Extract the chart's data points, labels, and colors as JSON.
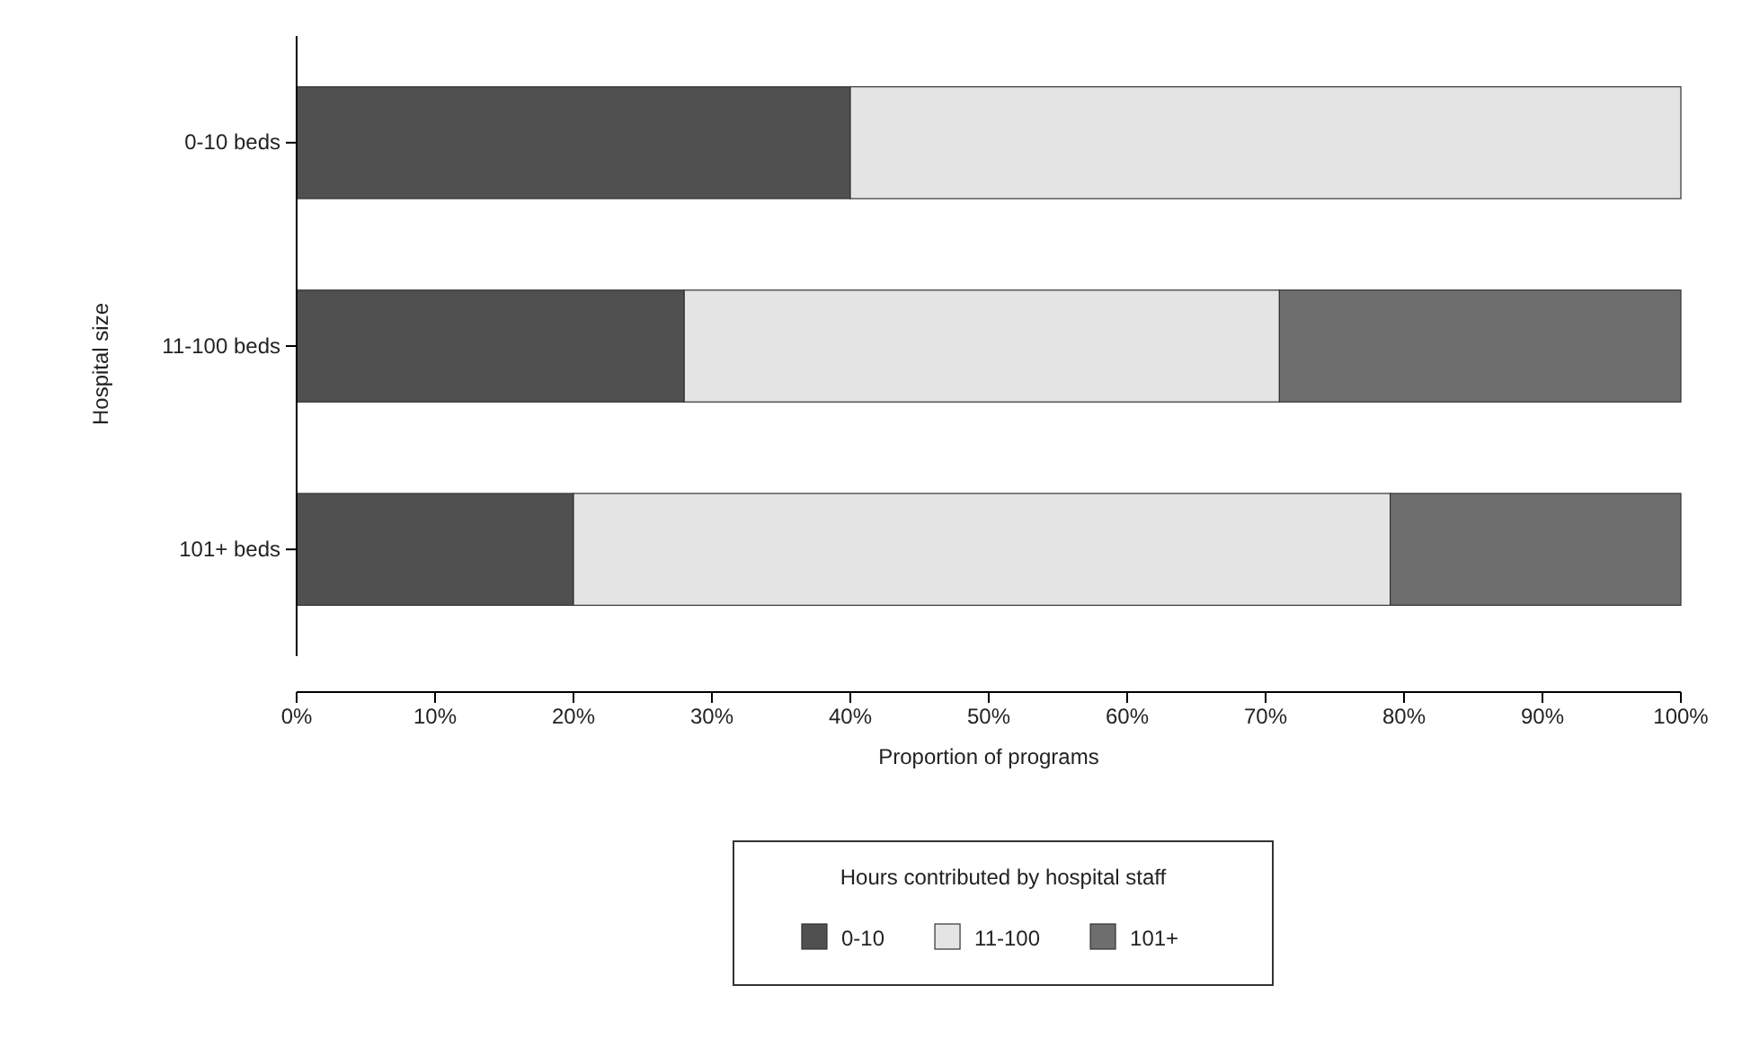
{
  "chart_data": {
    "type": "bar",
    "orientation": "horizontal",
    "stacked": true,
    "categories": [
      "0-10 beds",
      "11-100 beds",
      "101+ beds"
    ],
    "series": [
      {
        "name": "0-10",
        "color": "#505050",
        "values": [
          40,
          28,
          20
        ]
      },
      {
        "name": "11-100",
        "color": "#e4e4e4",
        "values": [
          60,
          43,
          59
        ]
      },
      {
        "name": "101+",
        "color": "#6e6e6e",
        "values": [
          0,
          29,
          21
        ]
      }
    ],
    "xlabel": "Proportion of programs",
    "ylabel": "Hospital size",
    "legend_title": "Hours contributed by hospital staff",
    "legend": "bottom",
    "xlim": [
      0,
      100
    ],
    "xticks": [
      {
        "value": 0,
        "label": "0%"
      },
      {
        "value": 10,
        "label": "10%"
      },
      {
        "value": 20,
        "label": "20%"
      },
      {
        "value": 30,
        "label": "30%"
      },
      {
        "value": 40,
        "label": "40%"
      },
      {
        "value": 50,
        "label": "50%"
      },
      {
        "value": 60,
        "label": "60%"
      },
      {
        "value": 70,
        "label": "70%"
      },
      {
        "value": 80,
        "label": "80%"
      },
      {
        "value": 90,
        "label": "90%"
      },
      {
        "value": 100,
        "label": "100%"
      }
    ]
  }
}
